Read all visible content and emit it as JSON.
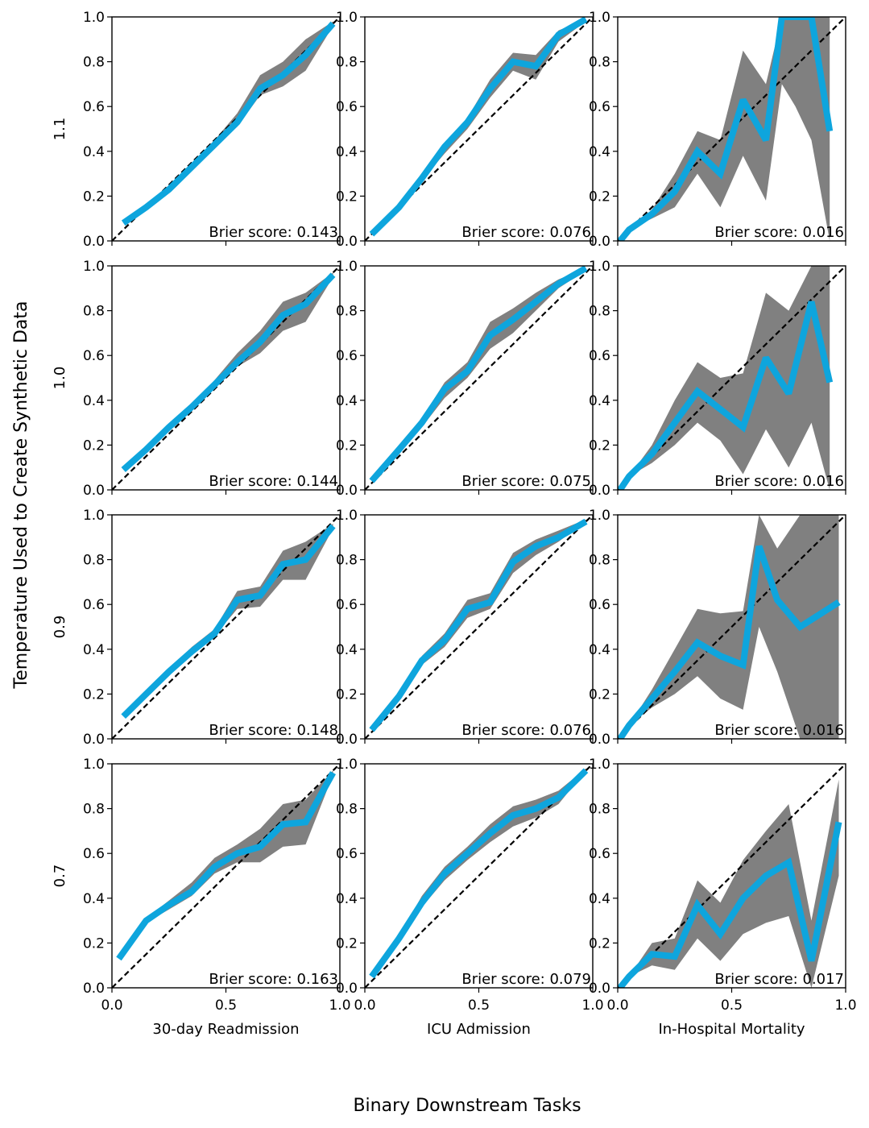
{
  "figure": {
    "ylabel": "Temperature Used to Create Synthetic Data",
    "xlabel": "Binary Downstream Tasks"
  },
  "colors": {
    "line": "#0ea5dd",
    "band": "#808080",
    "diagonal": "#000000"
  },
  "tasks": [
    "30-day Readmission",
    "ICU Admission",
    "In-Hospital Mortality"
  ],
  "temperatures": [
    "1.1",
    "1.0",
    "0.9",
    "0.7"
  ],
  "axis": {
    "xticks": [
      0.0,
      0.5,
      1.0
    ],
    "xtick_labels": [
      "0.0",
      "0.5",
      "1.0"
    ],
    "yticks": [
      0.0,
      0.2,
      0.4,
      0.6,
      0.8,
      1.0
    ],
    "ytick_labels": [
      "0.0",
      "0.2",
      "0.4",
      "0.6",
      "0.8",
      "1.0"
    ],
    "xlim": [
      0,
      1
    ],
    "ylim": [
      0,
      1
    ]
  },
  "chart_data": [
    {
      "type": "line",
      "row": 0,
      "col": 0,
      "temperature": "1.1",
      "task": "30-day Readmission",
      "brier_label": "Brier score: 0.143",
      "x": [
        0.05,
        0.15,
        0.25,
        0.35,
        0.45,
        0.55,
        0.65,
        0.75,
        0.85,
        0.97
      ],
      "y": [
        0.08,
        0.15,
        0.23,
        0.33,
        0.43,
        0.53,
        0.68,
        0.74,
        0.83,
        0.97
      ],
      "lower": [
        0.08,
        0.15,
        0.23,
        0.33,
        0.42,
        0.51,
        0.65,
        0.69,
        0.76,
        0.96
      ],
      "upper": [
        0.08,
        0.15,
        0.23,
        0.34,
        0.45,
        0.57,
        0.74,
        0.8,
        0.9,
        0.98
      ]
    },
    {
      "type": "line",
      "row": 0,
      "col": 1,
      "temperature": "1.1",
      "task": "ICU Admission",
      "brier_label": "Brier score: 0.076",
      "x": [
        0.03,
        0.15,
        0.25,
        0.35,
        0.45,
        0.55,
        0.65,
        0.75,
        0.85,
        0.97
      ],
      "y": [
        0.03,
        0.15,
        0.28,
        0.42,
        0.53,
        0.68,
        0.8,
        0.78,
        0.92,
        0.99
      ],
      "lower": [
        0.03,
        0.15,
        0.27,
        0.39,
        0.5,
        0.64,
        0.76,
        0.72,
        0.89,
        0.98
      ],
      "upper": [
        0.03,
        0.16,
        0.3,
        0.44,
        0.55,
        0.72,
        0.84,
        0.83,
        0.94,
        0.99
      ]
    },
    {
      "type": "line",
      "row": 0,
      "col": 2,
      "temperature": "1.1",
      "task": "In-Hospital Mortality",
      "brier_label": "Brier score: 0.016",
      "x": [
        0.01,
        0.05,
        0.15,
        0.25,
        0.35,
        0.45,
        0.55,
        0.65,
        0.72,
        0.78,
        0.85,
        0.93
      ],
      "y": [
        0.0,
        0.05,
        0.12,
        0.22,
        0.4,
        0.3,
        0.63,
        0.45,
        1.0,
        1.0,
        1.0,
        0.49
      ],
      "lower": [
        0.0,
        0.05,
        0.1,
        0.15,
        0.3,
        0.15,
        0.38,
        0.18,
        0.7,
        0.6,
        0.45,
        0.0
      ],
      "upper": [
        0.0,
        0.05,
        0.14,
        0.3,
        0.49,
        0.45,
        0.85,
        0.7,
        1.0,
        1.0,
        1.0,
        1.0
      ]
    },
    {
      "type": "line",
      "row": 1,
      "col": 0,
      "temperature": "1.0",
      "task": "30-day Readmission",
      "brier_label": "Brier score: 0.144",
      "x": [
        0.05,
        0.15,
        0.25,
        0.35,
        0.45,
        0.55,
        0.65,
        0.75,
        0.85,
        0.97
      ],
      "y": [
        0.09,
        0.18,
        0.28,
        0.37,
        0.47,
        0.57,
        0.66,
        0.78,
        0.83,
        0.96
      ],
      "lower": [
        0.09,
        0.18,
        0.27,
        0.36,
        0.46,
        0.55,
        0.61,
        0.71,
        0.75,
        0.95
      ],
      "upper": [
        0.09,
        0.18,
        0.29,
        0.38,
        0.49,
        0.61,
        0.71,
        0.84,
        0.88,
        0.97
      ]
    },
    {
      "type": "line",
      "row": 1,
      "col": 1,
      "temperature": "1.0",
      "task": "ICU Admission",
      "brier_label": "Brier score: 0.075",
      "x": [
        0.03,
        0.15,
        0.25,
        0.35,
        0.45,
        0.55,
        0.65,
        0.75,
        0.85,
        0.97
      ],
      "y": [
        0.04,
        0.18,
        0.3,
        0.45,
        0.53,
        0.69,
        0.76,
        0.84,
        0.92,
        0.99
      ],
      "lower": [
        0.04,
        0.17,
        0.28,
        0.41,
        0.5,
        0.63,
        0.7,
        0.8,
        0.9,
        0.98
      ],
      "upper": [
        0.04,
        0.19,
        0.32,
        0.48,
        0.57,
        0.75,
        0.81,
        0.88,
        0.94,
        0.99
      ]
    },
    {
      "type": "line",
      "row": 1,
      "col": 2,
      "temperature": "1.0",
      "task": "In-Hospital Mortality",
      "brier_label": "Brier score: 0.016",
      "x": [
        0.01,
        0.05,
        0.15,
        0.25,
        0.35,
        0.45,
        0.55,
        0.65,
        0.75,
        0.85,
        0.93
      ],
      "y": [
        0.0,
        0.06,
        0.16,
        0.3,
        0.44,
        0.36,
        0.28,
        0.59,
        0.43,
        0.84,
        0.48
      ],
      "lower": [
        0.0,
        0.06,
        0.12,
        0.2,
        0.3,
        0.22,
        0.07,
        0.27,
        0.1,
        0.3,
        0.0
      ],
      "upper": [
        0.0,
        0.06,
        0.2,
        0.4,
        0.57,
        0.5,
        0.52,
        0.88,
        0.8,
        1.0,
        1.0
      ]
    },
    {
      "type": "line",
      "row": 2,
      "col": 0,
      "temperature": "0.9",
      "task": "30-day Readmission",
      "brier_label": "Brier score: 0.148",
      "x": [
        0.05,
        0.15,
        0.25,
        0.35,
        0.45,
        0.55,
        0.65,
        0.75,
        0.85,
        0.97
      ],
      "y": [
        0.1,
        0.2,
        0.3,
        0.39,
        0.47,
        0.62,
        0.64,
        0.78,
        0.8,
        0.95
      ],
      "lower": [
        0.1,
        0.2,
        0.3,
        0.38,
        0.46,
        0.58,
        0.59,
        0.71,
        0.71,
        0.94
      ],
      "upper": [
        0.1,
        0.2,
        0.31,
        0.41,
        0.49,
        0.66,
        0.68,
        0.84,
        0.88,
        0.96
      ]
    },
    {
      "type": "line",
      "row": 2,
      "col": 1,
      "temperature": "0.9",
      "task": "ICU Admission",
      "brier_label": "Brier score: 0.076",
      "x": [
        0.03,
        0.15,
        0.25,
        0.35,
        0.45,
        0.55,
        0.65,
        0.75,
        0.85,
        0.97
      ],
      "y": [
        0.04,
        0.19,
        0.35,
        0.44,
        0.58,
        0.61,
        0.79,
        0.86,
        0.9,
        0.97
      ],
      "lower": [
        0.04,
        0.18,
        0.33,
        0.41,
        0.54,
        0.58,
        0.74,
        0.82,
        0.88,
        0.97
      ],
      "upper": [
        0.04,
        0.2,
        0.37,
        0.47,
        0.62,
        0.65,
        0.83,
        0.89,
        0.93,
        0.98
      ]
    },
    {
      "type": "line",
      "row": 2,
      "col": 2,
      "temperature": "0.9",
      "task": "In-Hospital Mortality",
      "brier_label": "Brier score: 0.016",
      "x": [
        0.01,
        0.05,
        0.15,
        0.25,
        0.35,
        0.45,
        0.55,
        0.62,
        0.7,
        0.8,
        0.97
      ],
      "y": [
        0.0,
        0.06,
        0.18,
        0.3,
        0.43,
        0.37,
        0.33,
        0.86,
        0.62,
        0.5,
        0.61
      ],
      "lower": [
        0.0,
        0.06,
        0.14,
        0.2,
        0.28,
        0.18,
        0.13,
        0.5,
        0.3,
        0.0,
        0.0
      ],
      "upper": [
        0.0,
        0.06,
        0.22,
        0.4,
        0.58,
        0.56,
        0.57,
        1.0,
        0.85,
        1.0,
        1.0
      ]
    },
    {
      "type": "line",
      "row": 3,
      "col": 0,
      "temperature": "0.7",
      "task": "30-day Readmission",
      "brier_label": "Brier score: 0.163",
      "x": [
        0.03,
        0.15,
        0.25,
        0.35,
        0.45,
        0.55,
        0.65,
        0.75,
        0.85,
        0.97
      ],
      "y": [
        0.13,
        0.3,
        0.37,
        0.43,
        0.54,
        0.6,
        0.63,
        0.73,
        0.74,
        0.96
      ],
      "lower": [
        0.13,
        0.29,
        0.35,
        0.41,
        0.51,
        0.56,
        0.56,
        0.63,
        0.64,
        0.95
      ],
      "upper": [
        0.13,
        0.31,
        0.39,
        0.47,
        0.58,
        0.64,
        0.71,
        0.82,
        0.84,
        0.97
      ]
    },
    {
      "type": "line",
      "row": 3,
      "col": 1,
      "temperature": "0.7",
      "task": "ICU Admission",
      "brier_label": "Brier score: 0.079",
      "x": [
        0.03,
        0.15,
        0.25,
        0.35,
        0.45,
        0.55,
        0.65,
        0.75,
        0.85,
        0.97
      ],
      "y": [
        0.05,
        0.22,
        0.38,
        0.51,
        0.6,
        0.69,
        0.77,
        0.8,
        0.85,
        0.97
      ],
      "lower": [
        0.05,
        0.21,
        0.36,
        0.48,
        0.57,
        0.65,
        0.72,
        0.76,
        0.82,
        0.97
      ],
      "upper": [
        0.05,
        0.23,
        0.41,
        0.54,
        0.63,
        0.73,
        0.81,
        0.84,
        0.88,
        0.98
      ]
    },
    {
      "type": "line",
      "row": 3,
      "col": 2,
      "temperature": "0.7",
      "task": "In-Hospital Mortality",
      "brier_label": "Brier score: 0.017",
      "x": [
        0.01,
        0.05,
        0.15,
        0.25,
        0.35,
        0.45,
        0.55,
        0.65,
        0.75,
        0.85,
        0.97
      ],
      "y": [
        0.0,
        0.05,
        0.15,
        0.14,
        0.37,
        0.24,
        0.4,
        0.5,
        0.56,
        0.12,
        0.74
      ],
      "lower": [
        0.0,
        0.05,
        0.1,
        0.08,
        0.22,
        0.12,
        0.24,
        0.29,
        0.32,
        0.0,
        0.5
      ],
      "upper": [
        0.0,
        0.05,
        0.2,
        0.22,
        0.48,
        0.38,
        0.57,
        0.7,
        0.82,
        0.3,
        0.93
      ]
    }
  ]
}
